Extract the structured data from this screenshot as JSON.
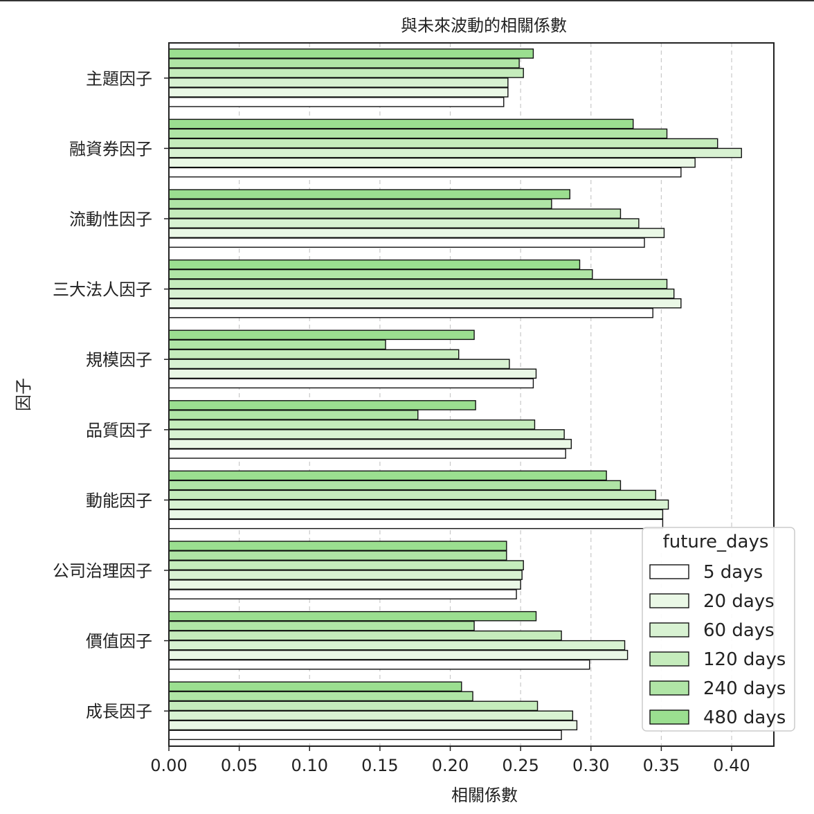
{
  "chart_data": {
    "type": "bar",
    "orientation": "horizontal",
    "title": "與未來波動的相關係數",
    "xlabel": "相關係數",
    "ylabel": "因子",
    "xlim": [
      0.0,
      0.43
    ],
    "xticks": [
      "0.00",
      "0.05",
      "0.10",
      "0.15",
      "0.20",
      "0.25",
      "0.30",
      "0.35",
      "0.40"
    ],
    "grid": "x-dashed",
    "legend_title": "future_days",
    "legend_position": "bottom-right",
    "categories": [
      "主題因子",
      "融資券因子",
      "流動性因子",
      "三大法人因子",
      "規模因子",
      "品質因子",
      "動能因子",
      "公司治理因子",
      "價值因子",
      "成長因子"
    ],
    "series": [
      {
        "name": "5 days",
        "color": "#ffffff",
        "values": [
          0.238,
          0.364,
          0.338,
          0.344,
          0.259,
          0.282,
          0.351,
          0.247,
          0.299,
          0.279
        ]
      },
      {
        "name": "20 days",
        "color": "#eaf8e6",
        "values": [
          0.241,
          0.374,
          0.352,
          0.364,
          0.261,
          0.286,
          0.351,
          0.25,
          0.326,
          0.29
        ]
      },
      {
        "name": "60 days",
        "color": "#d8f2d2",
        "values": [
          0.241,
          0.407,
          0.334,
          0.359,
          0.242,
          0.281,
          0.355,
          0.251,
          0.324,
          0.287
        ]
      },
      {
        "name": "120 days",
        "color": "#c5ecbc",
        "values": [
          0.252,
          0.39,
          0.321,
          0.354,
          0.206,
          0.26,
          0.346,
          0.252,
          0.279,
          0.262
        ]
      },
      {
        "name": "240 days",
        "color": "#b0e5a6",
        "values": [
          0.249,
          0.354,
          0.272,
          0.301,
          0.154,
          0.177,
          0.321,
          0.24,
          0.217,
          0.216
        ]
      },
      {
        "name": "480 days",
        "color": "#9bdf90",
        "values": [
          0.259,
          0.33,
          0.285,
          0.292,
          0.217,
          0.218,
          0.311,
          0.24,
          0.261,
          0.208
        ]
      }
    ]
  }
}
